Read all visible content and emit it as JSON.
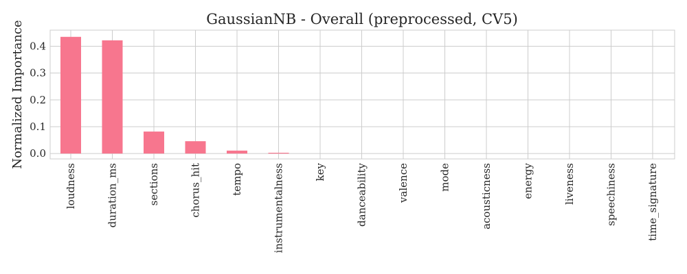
{
  "chart_data": {
    "type": "bar",
    "title": "GaussianNB - Overall (preprocessed, CV5)",
    "xlabel": "",
    "ylabel": "Normalized Importance",
    "categories": [
      "loudness",
      "duration_ms",
      "sections",
      "chorus_hit",
      "tempo",
      "instrumentalness",
      "key",
      "danceability",
      "valence",
      "mode",
      "acousticness",
      "energy",
      "liveness",
      "speechiness",
      "time_signature"
    ],
    "values": [
      0.435,
      0.422,
      0.082,
      0.046,
      0.011,
      0.003,
      0.0,
      0.0,
      0.0,
      0.0,
      0.0,
      0.0,
      0.0,
      0.0,
      0.0
    ],
    "ylim": [
      -0.02,
      0.46
    ],
    "yticks": [
      0.0,
      0.1,
      0.2,
      0.3,
      0.4
    ],
    "ytick_labels": [
      "0.0",
      "0.1",
      "0.2",
      "0.3",
      "0.4"
    ],
    "grid": true,
    "color": "#f7768e"
  }
}
